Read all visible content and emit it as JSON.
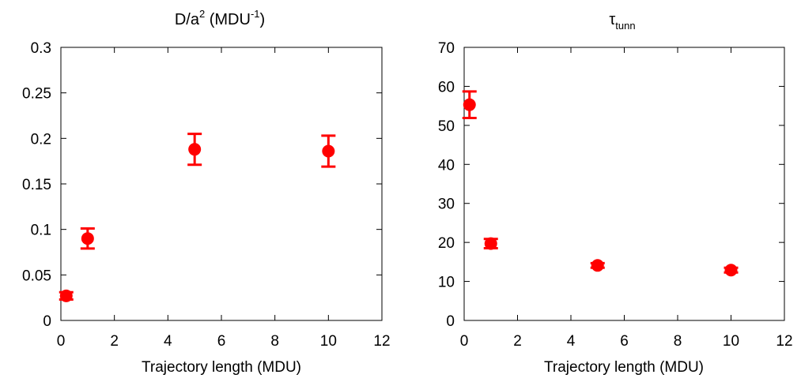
{
  "chart_data": [
    {
      "type": "scatter",
      "title": "D/a",
      "title_sup": "2",
      "title_suffix": " (MDU",
      "title_suffix_sup": "-1",
      "title_end": ")",
      "xlabel": "Trajectory length (MDU)",
      "ylabel": "",
      "xlim": [
        0,
        12
      ],
      "ylim": [
        0,
        0.3
      ],
      "xticks": [
        "0",
        "2",
        "4",
        "6",
        "8",
        "10",
        "12"
      ],
      "yticks": [
        "0",
        "0.05",
        "0.1",
        "0.15",
        "0.2",
        "0.25",
        "0.3"
      ],
      "grid": false,
      "marker_color": "#ff0000",
      "points": [
        {
          "x": 0.2,
          "y": 0.027,
          "err": 0.004
        },
        {
          "x": 1,
          "y": 0.09,
          "err": 0.011
        },
        {
          "x": 5,
          "y": 0.188,
          "err": 0.017
        },
        {
          "x": 10,
          "y": 0.186,
          "err": 0.017
        }
      ]
    },
    {
      "type": "scatter",
      "title": "τ",
      "title_sub": "tunn",
      "xlabel": "Trajectory length (MDU)",
      "ylabel": "",
      "xlim": [
        0,
        12
      ],
      "ylim": [
        0,
        70
      ],
      "xticks": [
        "0",
        "2",
        "4",
        "6",
        "8",
        "10",
        "12"
      ],
      "yticks": [
        "0",
        "10",
        "20",
        "30",
        "40",
        "50",
        "60",
        "70"
      ],
      "grid": false,
      "marker_color": "#ff0000",
      "points": [
        {
          "x": 0.2,
          "y": 55.3,
          "err": 3.4
        },
        {
          "x": 1,
          "y": 19.7,
          "err": 1.2
        },
        {
          "x": 5,
          "y": 14.1,
          "err": 0.6
        },
        {
          "x": 10,
          "y": 12.9,
          "err": 0.6
        }
      ]
    }
  ]
}
